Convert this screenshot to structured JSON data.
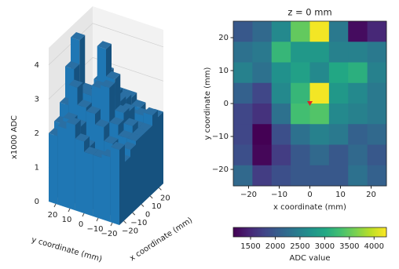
{
  "chart_data": [
    {
      "type": "bar3d",
      "zlabel": "x1000 ADC",
      "xlabel": "x coordinate (mm)",
      "ylabel": "y coordinate (mm)",
      "xlim": [
        -25,
        25
      ],
      "ylim": [
        -25,
        25
      ],
      "zlim": [
        0,
        4500
      ],
      "xticks": [
        {
          "value": -20,
          "label": "−20"
        },
        {
          "value": -10,
          "label": "−10"
        },
        0,
        10,
        20
      ],
      "yticks": [
        {
          "value": -20,
          "label": "−20"
        },
        {
          "value": -10,
          "label": "−10"
        },
        0,
        10,
        20
      ],
      "zticks": [
        0,
        {
          "value": 1000,
          "label": "1"
        },
        {
          "value": 2000,
          "label": "2"
        },
        {
          "value": 3000,
          "label": "3"
        },
        {
          "value": 4000,
          "label": "4"
        }
      ],
      "color": "#1f77b4"
    },
    {
      "type": "heatmap",
      "title": "z = 0 mm",
      "xlabel": "x coordinate (mm)",
      "ylabel": "y coordinate (mm)",
      "xlim": [
        -25,
        25
      ],
      "ylim": [
        -25,
        25
      ],
      "xticks": [
        {
          "value": -20,
          "label": "−20"
        },
        {
          "value": -10,
          "label": "−10"
        },
        0,
        10,
        20
      ],
      "yticks": [
        {
          "value": -20,
          "label": "−20"
        },
        {
          "value": -10,
          "label": "−10"
        },
        0,
        10,
        20
      ],
      "values": [
        [
          2000,
          2200,
          2600,
          3500,
          4200,
          2400,
          1250,
          1500
        ],
        [
          2300,
          2400,
          3200,
          2800,
          2800,
          2500,
          2500,
          2400
        ],
        [
          2500,
          2300,
          2700,
          2900,
          2600,
          3000,
          3100,
          2500
        ],
        [
          2100,
          1800,
          2600,
          3200,
          4200,
          2800,
          2600,
          2400
        ],
        [
          1800,
          1600,
          2300,
          3300,
          3400,
          2600,
          2500,
          2400
        ],
        [
          1800,
          1150,
          1900,
          2300,
          2500,
          2400,
          2100,
          2200
        ],
        [
          1900,
          1200,
          1700,
          2000,
          2200,
          2000,
          2200,
          2000
        ],
        [
          2200,
          1700,
          1900,
          2000,
          2000,
          2000,
          2300,
          2100
        ]
      ],
      "colormap": "viridis",
      "clim": [
        1150,
        4250
      ],
      "colorbar_label": "ADC value",
      "colorbar_ticks": [
        1500,
        2000,
        2500,
        3000,
        3500,
        4000
      ],
      "marker": {
        "x": 0,
        "y": 0,
        "color": "#d62728"
      }
    }
  ]
}
